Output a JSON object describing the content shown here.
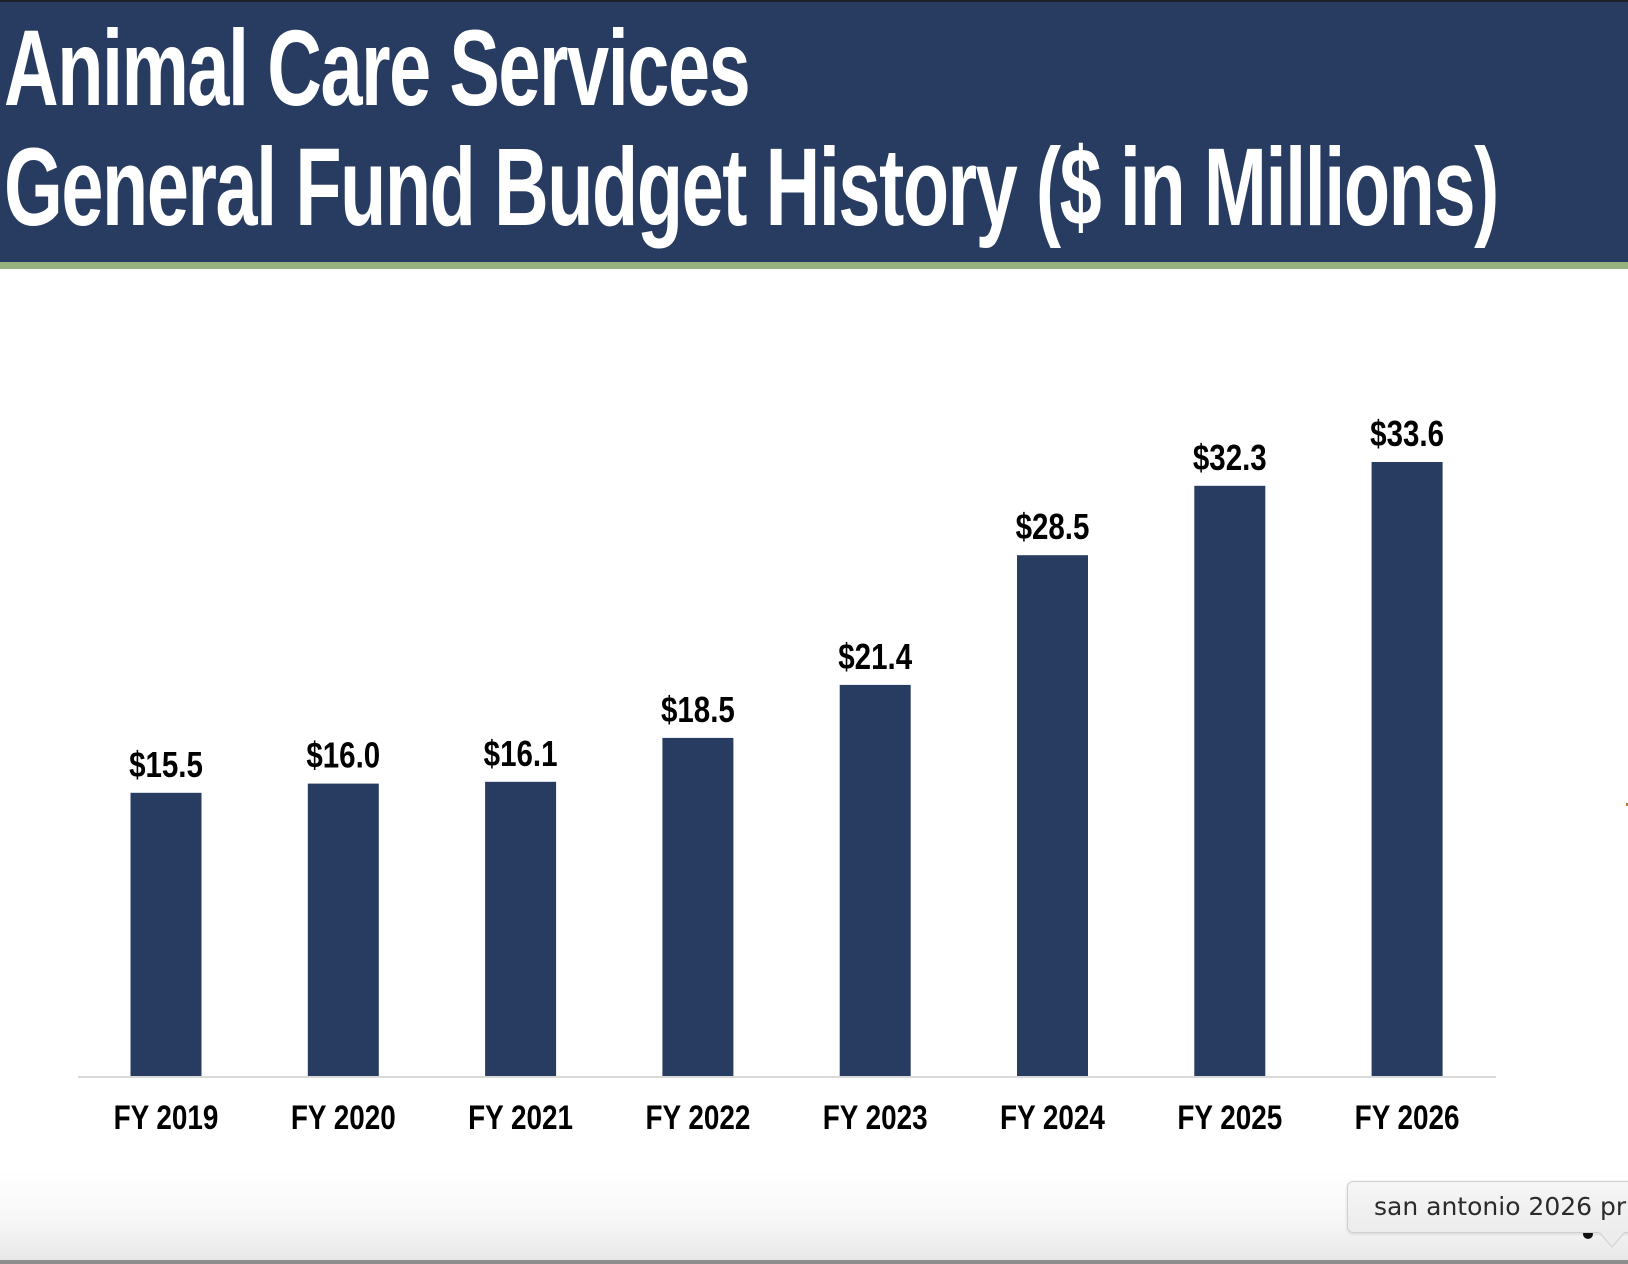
{
  "header": {
    "title_line_1": "Animal Care Services",
    "title_line_2": "General Fund Budget History ($ in Millions)"
  },
  "colors": {
    "header_bg": "#283c62",
    "header_stripe": "#97b27e",
    "bar": "#283c62",
    "axis_line": "#d9d9d9"
  },
  "chart_data": {
    "type": "bar",
    "title": "Animal Care Services General Fund Budget History ($ in Millions)",
    "xlabel": "",
    "ylabel": "",
    "categories": [
      "FY 2019",
      "FY 2020",
      "FY 2021",
      "FY 2022",
      "FY 2023",
      "FY 2024",
      "FY 2025",
      "FY 2026"
    ],
    "values": [
      15.5,
      16.0,
      16.1,
      18.5,
      21.4,
      28.5,
      32.3,
      33.6
    ],
    "data_labels": [
      "$15.5",
      "$16.0",
      "$16.1",
      "$18.5",
      "$21.4",
      "$28.5",
      "$32.3",
      "$33.6"
    ],
    "ylim": [
      0,
      33.6
    ],
    "grid": false,
    "legend": "none"
  },
  "tooltip": {
    "text": "san antonio 2026 pr"
  }
}
